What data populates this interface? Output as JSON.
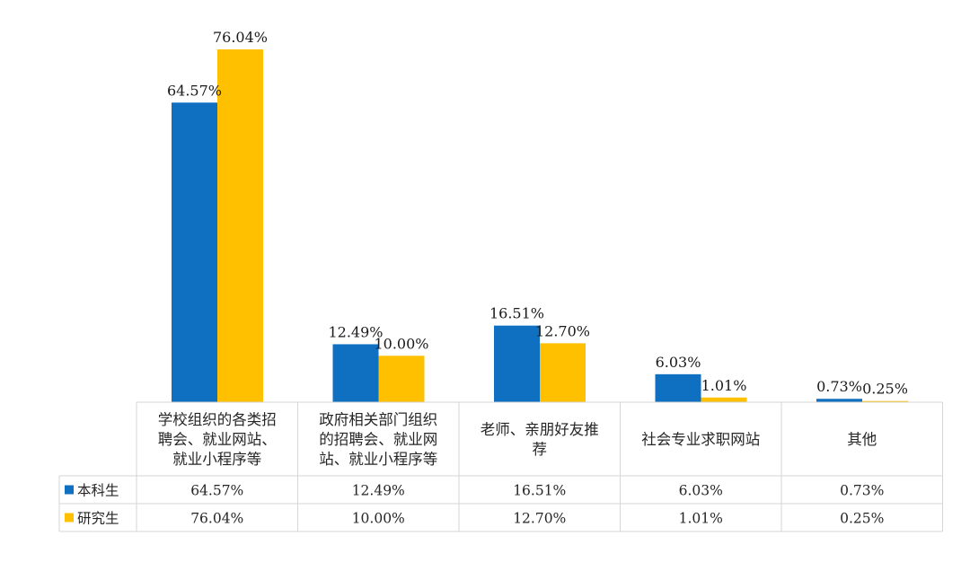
{
  "chart_data": {
    "type": "bar",
    "title": "",
    "xlabel": "",
    "ylabel": "",
    "ylim": [
      0,
      80
    ],
    "grid": false,
    "legend": "data-table-left",
    "categories": [
      [
        "学校组织的各类招",
        "聘会、就业网站、",
        "就业小程序等"
      ],
      [
        "政府相关部门组织",
        "的招聘会、就业网",
        "站、就业小程序等"
      ],
      [
        "老师、亲朋好友推",
        "荐"
      ],
      [
        "社会专业求职网站"
      ],
      [
        "其他"
      ]
    ],
    "series": [
      {
        "name": "本科生",
        "color": "#0f6fc1",
        "values": [
          64.57,
          12.49,
          16.51,
          6.03,
          0.73
        ],
        "labels": [
          "64.57%",
          "12.49%",
          "16.51%",
          "6.03%",
          "0.73%"
        ]
      },
      {
        "name": "研究生",
        "color": "#ffc000",
        "values": [
          76.04,
          10.0,
          12.7,
          1.01,
          0.25
        ],
        "labels": [
          "76.04%",
          "10.00%",
          "12.70%",
          "1.01%",
          "0.25%"
        ]
      }
    ]
  }
}
